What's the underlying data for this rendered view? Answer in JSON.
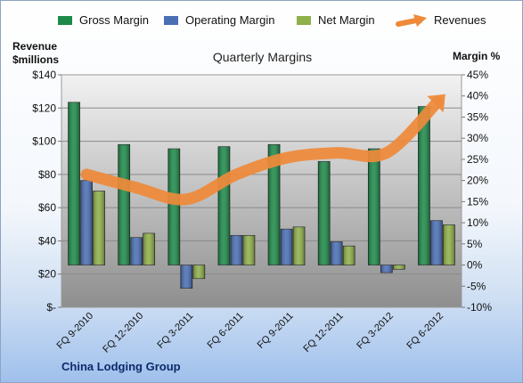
{
  "chart_data": {
    "type": "bar",
    "title": "Quarterly Margins",
    "footer": "China Lodging Group",
    "categories": [
      "FQ 9-2010",
      "FQ 12-2010",
      "FQ 3-2011",
      "FQ 6-2011",
      "FQ 9-2011",
      "FQ 12-2011",
      "FQ 3-2012",
      "FQ 6-2012"
    ],
    "series": [
      {
        "name": "Gross Margin",
        "axis": "right",
        "values": [
          38.5,
          28.5,
          27.5,
          28,
          28.5,
          24.5,
          27.5,
          37.5
        ],
        "color": "#1e8a4a"
      },
      {
        "name": "Operating Margin",
        "axis": "right",
        "values": [
          20,
          6.5,
          -5.5,
          7,
          8.5,
          5.5,
          -1.8,
          10.5
        ],
        "color": "#4a6fb5"
      },
      {
        "name": "Net Margin",
        "axis": "right",
        "values": [
          17.5,
          7.5,
          -3.2,
          7,
          9,
          4.5,
          -1,
          9.5
        ],
        "color": "#8fb04a"
      }
    ],
    "line_series": {
      "name": "Revenues",
      "axis": "left",
      "values": [
        80,
        72,
        65,
        80,
        90,
        93,
        93,
        123
      ],
      "color": "#ee8a3a"
    },
    "y_left": {
      "label": "Revenue $millions",
      "label_lines": [
        "Revenue",
        "$millions"
      ],
      "min": 0,
      "max": 140,
      "ticks": [
        "$-",
        "$20",
        "$40",
        "$60",
        "$80",
        "$100",
        "$120",
        "$140"
      ]
    },
    "y_right": {
      "label": "Margin %",
      "min": -10,
      "max": 45,
      "ticks": [
        "-10%",
        "-5%",
        "0%",
        "5%",
        "10%",
        "15%",
        "20%",
        "25%",
        "30%",
        "35%",
        "40%",
        "45%"
      ]
    },
    "grid": true,
    "legend_position": "top"
  },
  "legend_items": [
    {
      "label": "Gross Margin",
      "color": "#1e8a4a",
      "kind": "bar"
    },
    {
      "label": "Operating Margin",
      "color": "#4a6fb5",
      "kind": "bar"
    },
    {
      "label": "Net Margin",
      "color": "#8fb04a",
      "kind": "bar"
    },
    {
      "label": "Revenues",
      "color": "#ee8a3a",
      "kind": "arrow"
    }
  ]
}
